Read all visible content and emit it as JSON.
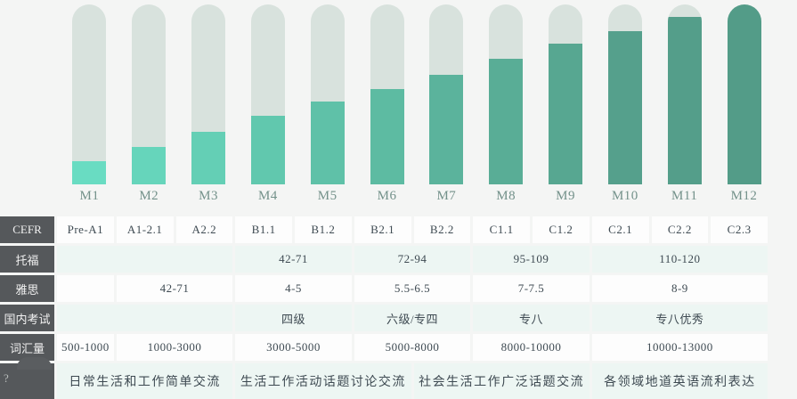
{
  "page": {
    "background": "#f4f5f4"
  },
  "chart_data": {
    "type": "bar",
    "subtype": "thermometer-progress",
    "title": "",
    "categories": [
      "M1",
      "M2",
      "M3",
      "M4",
      "M5",
      "M6",
      "M7",
      "M8",
      "M9",
      "M10",
      "M11",
      "M12"
    ],
    "values": [
      13,
      21,
      29,
      38,
      46,
      53,
      61,
      70,
      78,
      85,
      93,
      100
    ],
    "unit": "percent-fill",
    "ylim": [
      0,
      100
    ],
    "grid": false,
    "legend": "none",
    "track_color": "#d8e2dd",
    "label_color": "#73918a",
    "bar_colors": [
      "#69dcc2",
      "#66d5bb",
      "#64cfb5",
      "#61c8ae",
      "#5fc1a8",
      "#5dbba2",
      "#5bb39c",
      "#59ad96",
      "#57a791",
      "#55a08c",
      "#549e8a",
      "#539c88"
    ]
  },
  "table": {
    "header_bg": "#55585b",
    "header_text_color": "#f1f1f1",
    "tint_row_bg": "#edf6f3",
    "white_row_bg": "#fdfdfd",
    "cell_text_color": "#3e4a52",
    "mascot_color": "#5a5d60",
    "qmark_color": "#b9bdbc",
    "rows": [
      {
        "label": "CEFR",
        "cells": [
          {
            "text": "Pre-A1",
            "span": 1
          },
          {
            "text": "A1-2.1",
            "span": 1
          },
          {
            "text": "A2.2",
            "span": 1
          },
          {
            "text": "B1.1",
            "span": 1
          },
          {
            "text": "B1.2",
            "span": 1
          },
          {
            "text": "B2.1",
            "span": 1
          },
          {
            "text": "B2.2",
            "span": 1
          },
          {
            "text": "C1.1",
            "span": 1
          },
          {
            "text": "C1.2",
            "span": 1
          },
          {
            "text": "C2.1",
            "span": 1
          },
          {
            "text": "C2.2",
            "span": 1
          },
          {
            "text": "C2.3",
            "span": 1
          }
        ]
      },
      {
        "label": "托福",
        "cells": [
          {
            "text": "",
            "span": 3
          },
          {
            "text": "42-71",
            "span": 2
          },
          {
            "text": "72-94",
            "span": 2
          },
          {
            "text": "95-109",
            "span": 2
          },
          {
            "text": "110-120",
            "span": 3
          }
        ]
      },
      {
        "label": "雅思",
        "cells": [
          {
            "text": "",
            "span": 1
          },
          {
            "text": "42-71",
            "span": 2
          },
          {
            "text": "4-5",
            "span": 2
          },
          {
            "text": "5.5-6.5",
            "span": 2
          },
          {
            "text": "7-7.5",
            "span": 2
          },
          {
            "text": "8-9",
            "span": 3
          }
        ]
      },
      {
        "label": "国内考试",
        "cells": [
          {
            "text": "",
            "span": 3
          },
          {
            "text": "四级",
            "span": 2
          },
          {
            "text": "六级/专四",
            "span": 2
          },
          {
            "text": "专八",
            "span": 2
          },
          {
            "text": "专八优秀",
            "span": 3
          }
        ]
      },
      {
        "label": "词汇量",
        "cells": [
          {
            "text": "500-1000",
            "span": 1
          },
          {
            "text": "1000-3000",
            "span": 2
          },
          {
            "text": "3000-5000",
            "span": 2
          },
          {
            "text": "5000-8000",
            "span": 2
          },
          {
            "text": "8000-10000",
            "span": 2
          },
          {
            "text": "10000-13000",
            "span": 3
          }
        ]
      },
      {
        "label": "?",
        "mascot": true,
        "cells": [
          {
            "text": "日常生活和工作简单交流",
            "span": 3
          },
          {
            "text": "生活工作活动话题讨论交流",
            "span": 3
          },
          {
            "text": "社会生活工作广泛话题交流",
            "span": 3
          },
          {
            "text": "各领域地道英语流利表达",
            "span": 3
          }
        ]
      }
    ]
  }
}
